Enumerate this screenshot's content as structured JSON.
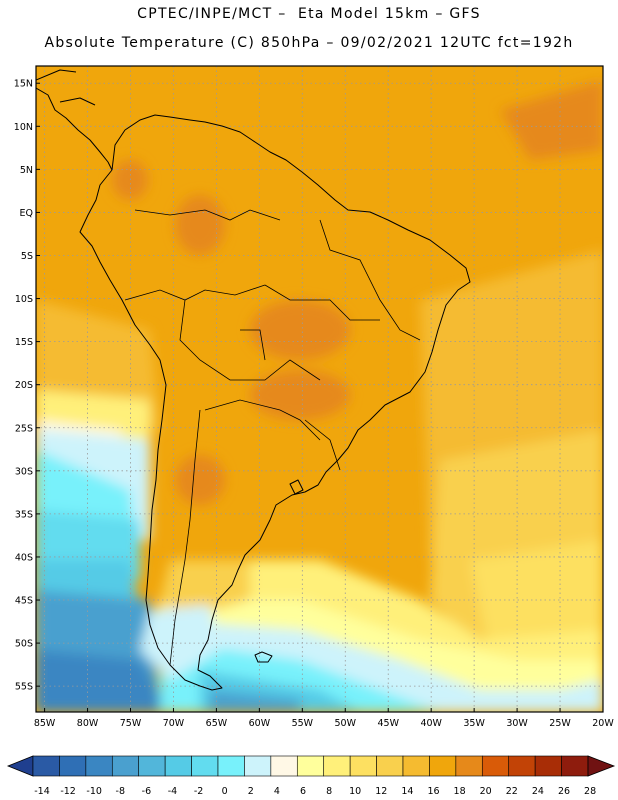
{
  "header": {
    "line1": "CPTEC/INPE/MCT –  Eta Model 15km – GFS",
    "line2": "Absolute Temperature (C) 850hPa – 09/02/2021 12UTC fct=192h"
  },
  "axes": {
    "lat_labels": [
      "15N",
      "10N",
      "5N",
      "EQ",
      "5S",
      "10S",
      "15S",
      "20S",
      "25S",
      "30S",
      "35S",
      "40S",
      "45S",
      "50S",
      "55S"
    ],
    "lon_labels": [
      "85W",
      "80W",
      "75W",
      "70W",
      "65W",
      "60W",
      "55W",
      "50W",
      "45W",
      "40W",
      "35W",
      "30W",
      "25W",
      "20W"
    ]
  },
  "colorbar": {
    "ticks": [
      "-14",
      "-12",
      "-10",
      "-8",
      "-6",
      "-4",
      "-2",
      "0",
      "2",
      "4",
      "6",
      "8",
      "10",
      "12",
      "14",
      "16",
      "18",
      "20",
      "22",
      "24",
      "26",
      "28"
    ],
    "colors": [
      "#1f3f8f",
      "#2a5aa5",
      "#2f6fb5",
      "#3a86c2",
      "#4aa0cf",
      "#52b6da",
      "#55cbe6",
      "#62dcef",
      "#78f1fb",
      "#cdf3fb",
      "#fff8e6",
      "#ffff9c",
      "#fff07a",
      "#fde061",
      "#f9d04d",
      "#f5bb30",
      "#f0a60c",
      "#e6891a",
      "#d95b08",
      "#c24306",
      "#a82d06",
      "#8e1c0d",
      "#701212"
    ]
  },
  "map": {
    "lat_range": [
      -58,
      17
    ],
    "lon_range": [
      -86,
      -20
    ],
    "field": "Absolute Temperature (C) 850hPa"
  }
}
